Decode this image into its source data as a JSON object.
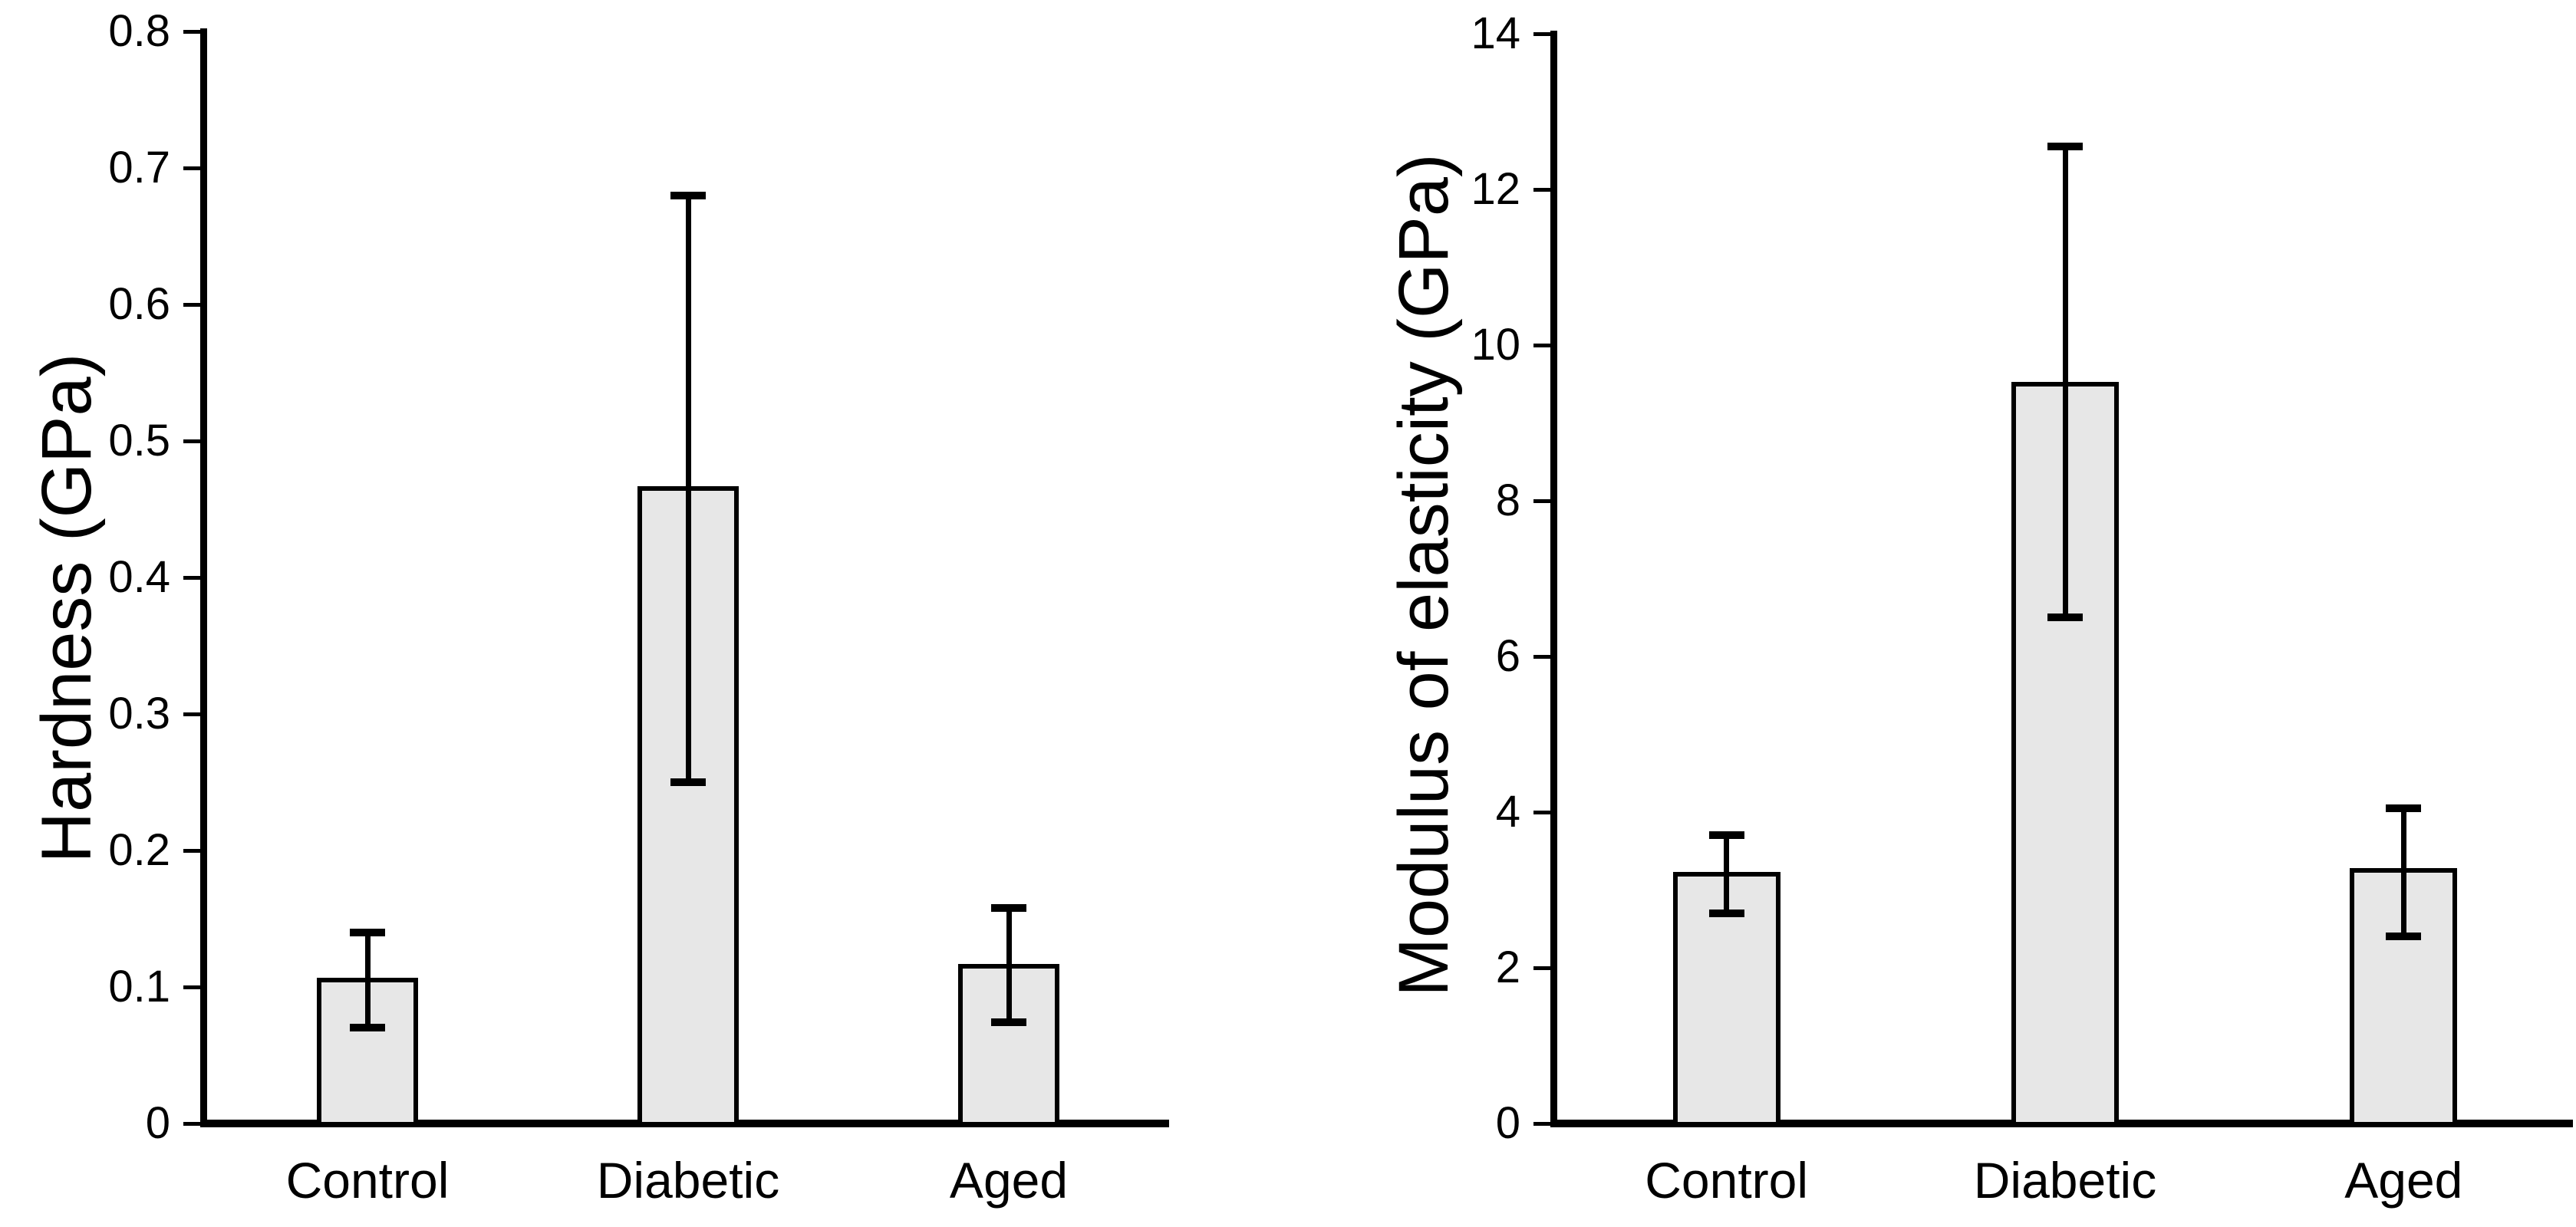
{
  "page": {
    "background_color": "#FFFFFF",
    "text_color": "#000000",
    "bar_fill_color": "#E7E7E7",
    "bar_border_color": "#000000"
  },
  "chart_data": [
    {
      "type": "bar",
      "title": "",
      "xlabel": "",
      "ylabel": "Hardness (GPa)",
      "categories": [
        "Control",
        "Diabetic",
        "Aged"
      ],
      "values": [
        0.105,
        0.465,
        0.115
      ],
      "error_high": [
        0.14,
        0.68,
        0.158
      ],
      "error_low": [
        0.07,
        0.25,
        0.074
      ],
      "ylim": [
        0,
        0.8
      ],
      "yticks": [
        0,
        0.1,
        0.2,
        0.3,
        0.4,
        0.5,
        0.6,
        0.7,
        0.8
      ],
      "ytick_labels": [
        "0",
        "0.1",
        "0.2",
        "0.3",
        "0.4",
        "0.5",
        "0.6",
        "0.7",
        "0.8"
      ],
      "grid": false,
      "legend": "none"
    },
    {
      "type": "bar",
      "title": "",
      "xlabel": "",
      "ylabel": "Modulus of elasticity (GPa)",
      "categories": [
        "Control",
        "Diabetic",
        "Aged"
      ],
      "values": [
        3.2,
        9.5,
        3.25
      ],
      "error_high": [
        3.7,
        12.55,
        4.05
      ],
      "error_low": [
        2.7,
        6.5,
        2.4
      ],
      "ylim": [
        0,
        14
      ],
      "yticks": [
        0,
        2,
        4,
        6,
        8,
        10,
        12,
        14
      ],
      "ytick_labels": [
        "0",
        "2",
        "4",
        "6",
        "8",
        "10",
        "12",
        "14"
      ],
      "grid": false,
      "legend": "none"
    }
  ]
}
